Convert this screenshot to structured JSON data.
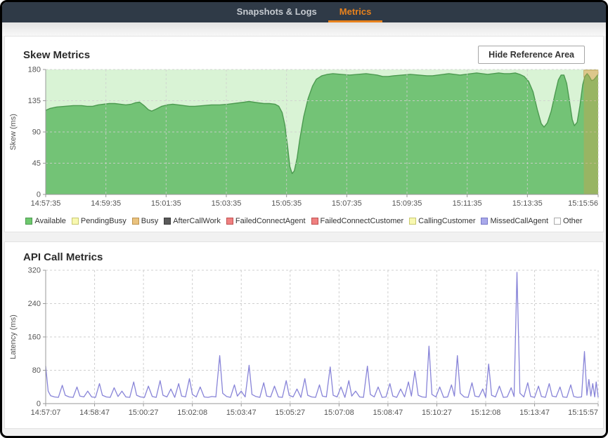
{
  "window": {
    "tabs": [
      {
        "label": "Snapshots & Logs",
        "active": false
      },
      {
        "label": "Metrics",
        "active": true
      }
    ]
  },
  "skew_panel": {
    "title": "Skew Metrics",
    "button_label": "Hide Reference Area"
  },
  "api_panel": {
    "title": "API Call Metrics"
  },
  "colors": {
    "topbar_bg": "#2f3a47",
    "accent_orange": "#e8821d",
    "tab_inactive": "#c6cbd1",
    "skew_area_fill": "#73c376",
    "skew_area_stroke": "#4c9a50",
    "skew_plot_bg": "#d9f3d5",
    "reference_band": "#c0a64f",
    "overlay_cream": "#f8e6c1",
    "api_line": "#8884d8",
    "grid": "#cfcfcf",
    "axis": "#999999",
    "tick_text": "#555555"
  },
  "chart_data": [
    {
      "type": "area",
      "title": "Skew Metrics",
      "ylabel": "Skew (ms)",
      "ylim": [
        0,
        180
      ],
      "y_ticks": [
        0,
        45,
        90,
        135,
        180
      ],
      "x_span": 1101,
      "x_tick_t": [
        0,
        120,
        240,
        360,
        480,
        600,
        720,
        840,
        960,
        1101
      ],
      "x_tick_labels": [
        "14:57:35",
        "14:59:35",
        "15:01:35",
        "15:03:35",
        "15:05:35",
        "15:07:35",
        "15:09:35",
        "15:11:35",
        "15:13:35",
        "15:15:56"
      ],
      "plot_bg": "#d9f3d5",
      "grid_on": true,
      "legend_position": "bottom",
      "series": [
        {
          "name": "Available",
          "fill": "#73c376",
          "stroke": "#4c9a50",
          "points": [
            [
              0,
              121
            ],
            [
              0.008,
              124
            ],
            [
              0.02,
              126
            ],
            [
              0.035,
              127
            ],
            [
              0.05,
              128
            ],
            [
              0.065,
              128
            ],
            [
              0.075,
              127
            ],
            [
              0.085,
              127
            ],
            [
              0.095,
              129
            ],
            [
              0.105,
              130
            ],
            [
              0.115,
              131
            ],
            [
              0.125,
              131
            ],
            [
              0.135,
              130
            ],
            [
              0.145,
              129
            ],
            [
              0.155,
              130
            ],
            [
              0.162,
              132
            ],
            [
              0.17,
              133
            ],
            [
              0.178,
              128
            ],
            [
              0.186,
              122
            ],
            [
              0.192,
              120
            ],
            [
              0.2,
              123
            ],
            [
              0.21,
              127
            ],
            [
              0.22,
              129
            ],
            [
              0.23,
              130
            ],
            [
              0.24,
              129
            ],
            [
              0.25,
              128
            ],
            [
              0.26,
              127
            ],
            [
              0.27,
              127
            ],
            [
              0.285,
              128
            ],
            [
              0.3,
              129
            ],
            [
              0.315,
              129
            ],
            [
              0.33,
              130
            ],
            [
              0.34,
              131
            ],
            [
              0.35,
              132
            ],
            [
              0.36,
              133
            ],
            [
              0.368,
              134
            ],
            [
              0.376,
              133
            ],
            [
              0.385,
              132
            ],
            [
              0.395,
              131
            ],
            [
              0.405,
              131
            ],
            [
              0.415,
              130
            ],
            [
              0.422,
              127
            ],
            [
              0.428,
              118
            ],
            [
              0.433,
              100
            ],
            [
              0.438,
              68
            ],
            [
              0.442,
              40
            ],
            [
              0.446,
              30
            ],
            [
              0.45,
              34
            ],
            [
              0.455,
              52
            ],
            [
              0.46,
              80
            ],
            [
              0.467,
              112
            ],
            [
              0.475,
              138
            ],
            [
              0.483,
              156
            ],
            [
              0.49,
              166
            ],
            [
              0.5,
              171
            ],
            [
              0.51,
              173
            ],
            [
              0.52,
              174
            ],
            [
              0.535,
              173
            ],
            [
              0.55,
              172
            ],
            [
              0.565,
              173
            ],
            [
              0.58,
              174
            ],
            [
              0.59,
              173
            ],
            [
              0.6,
              172
            ],
            [
              0.61,
              170
            ],
            [
              0.62,
              170
            ],
            [
              0.63,
              171
            ],
            [
              0.645,
              172
            ],
            [
              0.66,
              173
            ],
            [
              0.675,
              172
            ],
            [
              0.69,
              171
            ],
            [
              0.7,
              171
            ],
            [
              0.71,
              172
            ],
            [
              0.72,
              173
            ],
            [
              0.73,
              174
            ],
            [
              0.74,
              173
            ],
            [
              0.75,
              172
            ],
            [
              0.76,
              173
            ],
            [
              0.77,
              174
            ],
            [
              0.78,
              175
            ],
            [
              0.79,
              174
            ],
            [
              0.8,
              173
            ],
            [
              0.81,
              174
            ],
            [
              0.82,
              175
            ],
            [
              0.83,
              174
            ],
            [
              0.84,
              174
            ],
            [
              0.85,
              175
            ],
            [
              0.858,
              173
            ],
            [
              0.866,
              170
            ],
            [
              0.874,
              163
            ],
            [
              0.882,
              148
            ],
            [
              0.89,
              122
            ],
            [
              0.897,
              102
            ],
            [
              0.902,
              97
            ],
            [
              0.908,
              103
            ],
            [
              0.915,
              120
            ],
            [
              0.922,
              145
            ],
            [
              0.928,
              165
            ],
            [
              0.933,
              172
            ],
            [
              0.938,
              172
            ],
            [
              0.943,
              160
            ],
            [
              0.948,
              135
            ],
            [
              0.953,
              108
            ],
            [
              0.957,
              99
            ],
            [
              0.962,
              104
            ],
            [
              0.967,
              128
            ],
            [
              0.972,
              158
            ],
            [
              0.976,
              170
            ],
            [
              0.98,
              174
            ],
            [
              0.984,
              170
            ],
            [
              0.988,
              164
            ],
            [
              0.992,
              165
            ],
            [
              0.996,
              169
            ],
            [
              1,
              173
            ]
          ]
        }
      ],
      "overlay": {
        "name": "PendingBusy",
        "fill": "#f8e6c1",
        "stroke": "#c2a368",
        "top": 179,
        "points": [
          [
            0.974,
            169
          ],
          [
            0.976,
            170
          ],
          [
            0.98,
            174
          ],
          [
            0.984,
            170
          ],
          [
            0.988,
            164
          ],
          [
            0.992,
            165
          ],
          [
            0.996,
            169
          ],
          [
            1,
            173
          ]
        ]
      },
      "reference_area": {
        "x_start": 0.974,
        "x_end": 1.0,
        "fill": "#c0a64f",
        "opacity": 0.48
      },
      "legend": [
        {
          "label": "Available",
          "color": "#6ec86e",
          "border": "#4c9a50"
        },
        {
          "label": "PendingBusy",
          "color": "#f8f8b0",
          "border": "#c8c870"
        },
        {
          "label": "Busy",
          "color": "#e9c27e",
          "border": "#bd9350"
        },
        {
          "label": "AfterCallWork",
          "color": "#5a5a5a",
          "border": "#3a3a3a"
        },
        {
          "label": "FailedConnectAgent",
          "color": "#ef8080",
          "border": "#c05050"
        },
        {
          "label": "FailedConnectCustomer",
          "color": "#ef8080",
          "border": "#c05050"
        },
        {
          "label": "CallingCustomer",
          "color": "#f8f8b0",
          "border": "#c8c870"
        },
        {
          "label": "MissedCallAgent",
          "color": "#a9a9ea",
          "border": "#7878c8"
        },
        {
          "label": "Other",
          "color": "#ffffff",
          "border": "#aaaaaa"
        }
      ]
    },
    {
      "type": "line",
      "title": "API Call Metrics",
      "ylabel": "Latency (ms)",
      "ylim": [
        0,
        320
      ],
      "y_ticks": [
        0,
        80,
        160,
        240,
        320
      ],
      "x_span": 1130,
      "x_tick_t": [
        0,
        100,
        200,
        300,
        400,
        500,
        600,
        700,
        800,
        900,
        1000,
        1130
      ],
      "x_tick_labels": [
        "14:57:07",
        "14:58:47",
        "15:00:27",
        "15:02:08",
        "15:03:47",
        "15:05:27",
        "15:07:08",
        "15:08:47",
        "15:10:27",
        "15:12:08",
        "15:13:47",
        "15:15:57"
      ],
      "stroke": "#8884d8",
      "grid_on": true,
      "points": [
        [
          0,
          90
        ],
        [
          5,
          30
        ],
        [
          10,
          19
        ],
        [
          18,
          16
        ],
        [
          26,
          15
        ],
        [
          34,
          44
        ],
        [
          40,
          20
        ],
        [
          48,
          16
        ],
        [
          56,
          15
        ],
        [
          64,
          40
        ],
        [
          70,
          18
        ],
        [
          78,
          16
        ],
        [
          86,
          30
        ],
        [
          94,
          16
        ],
        [
          102,
          15
        ],
        [
          110,
          48
        ],
        [
          116,
          20
        ],
        [
          124,
          16
        ],
        [
          132,
          15
        ],
        [
          140,
          38
        ],
        [
          148,
          17
        ],
        [
          156,
          30
        ],
        [
          164,
          16
        ],
        [
          172,
          15
        ],
        [
          180,
          52
        ],
        [
          186,
          20
        ],
        [
          194,
          16
        ],
        [
          202,
          15
        ],
        [
          210,
          42
        ],
        [
          218,
          17
        ],
        [
          226,
          15
        ],
        [
          234,
          55
        ],
        [
          240,
          20
        ],
        [
          248,
          16
        ],
        [
          256,
          35
        ],
        [
          264,
          15
        ],
        [
          272,
          48
        ],
        [
          278,
          18
        ],
        [
          286,
          16
        ],
        [
          294,
          60
        ],
        [
          300,
          22
        ],
        [
          308,
          16
        ],
        [
          316,
          40
        ],
        [
          324,
          16
        ],
        [
          332,
          15
        ],
        [
          340,
          17
        ],
        [
          348,
          16
        ],
        [
          356,
          115
        ],
        [
          362,
          25
        ],
        [
          370,
          17
        ],
        [
          378,
          15
        ],
        [
          386,
          45
        ],
        [
          392,
          18
        ],
        [
          400,
          30
        ],
        [
          408,
          16
        ],
        [
          416,
          92
        ],
        [
          422,
          22
        ],
        [
          430,
          17
        ],
        [
          438,
          15
        ],
        [
          446,
          50
        ],
        [
          452,
          18
        ],
        [
          460,
          16
        ],
        [
          468,
          42
        ],
        [
          476,
          16
        ],
        [
          484,
          15
        ],
        [
          492,
          55
        ],
        [
          498,
          20
        ],
        [
          506,
          16
        ],
        [
          514,
          35
        ],
        [
          522,
          15
        ],
        [
          530,
          60
        ],
        [
          536,
          20
        ],
        [
          544,
          16
        ],
        [
          552,
          15
        ],
        [
          560,
          45
        ],
        [
          566,
          18
        ],
        [
          574,
          16
        ],
        [
          582,
          88
        ],
        [
          588,
          20
        ],
        [
          596,
          16
        ],
        [
          604,
          40
        ],
        [
          612,
          15
        ],
        [
          620,
          55
        ],
        [
          626,
          18
        ],
        [
          634,
          30
        ],
        [
          642,
          16
        ],
        [
          650,
          15
        ],
        [
          658,
          90
        ],
        [
          664,
          22
        ],
        [
          672,
          16
        ],
        [
          680,
          40
        ],
        [
          688,
          15
        ],
        [
          696,
          16
        ],
        [
          704,
          48
        ],
        [
          710,
          18
        ],
        [
          718,
          15
        ],
        [
          726,
          35
        ],
        [
          734,
          16
        ],
        [
          742,
          52
        ],
        [
          748,
          18
        ],
        [
          755,
          78
        ],
        [
          762,
          20
        ],
        [
          770,
          16
        ],
        [
          778,
          15
        ],
        [
          784,
          138
        ],
        [
          790,
          22
        ],
        [
          798,
          16
        ],
        [
          806,
          40
        ],
        [
          814,
          15
        ],
        [
          822,
          16
        ],
        [
          830,
          45
        ],
        [
          836,
          18
        ],
        [
          842,
          115
        ],
        [
          848,
          25
        ],
        [
          856,
          16
        ],
        [
          864,
          15
        ],
        [
          872,
          50
        ],
        [
          878,
          18
        ],
        [
          886,
          16
        ],
        [
          894,
          35
        ],
        [
          900,
          15
        ],
        [
          906,
          95
        ],
        [
          912,
          20
        ],
        [
          920,
          16
        ],
        [
          928,
          42
        ],
        [
          936,
          15
        ],
        [
          944,
          16
        ],
        [
          952,
          38
        ],
        [
          958,
          17
        ],
        [
          964,
          315
        ],
        [
          970,
          25
        ],
        [
          978,
          16
        ],
        [
          986,
          50
        ],
        [
          992,
          17
        ],
        [
          1000,
          15
        ],
        [
          1008,
          42
        ],
        [
          1014,
          17
        ],
        [
          1022,
          15
        ],
        [
          1030,
          48
        ],
        [
          1036,
          18
        ],
        [
          1044,
          16
        ],
        [
          1052,
          40
        ],
        [
          1058,
          16
        ],
        [
          1066,
          15
        ],
        [
          1074,
          45
        ],
        [
          1080,
          17
        ],
        [
          1088,
          15
        ],
        [
          1096,
          16
        ],
        [
          1102,
          125
        ],
        [
          1107,
          20
        ],
        [
          1111,
          58
        ],
        [
          1115,
          18
        ],
        [
          1119,
          48
        ],
        [
          1123,
          16
        ],
        [
          1126,
          52
        ],
        [
          1130,
          15
        ]
      ]
    }
  ]
}
